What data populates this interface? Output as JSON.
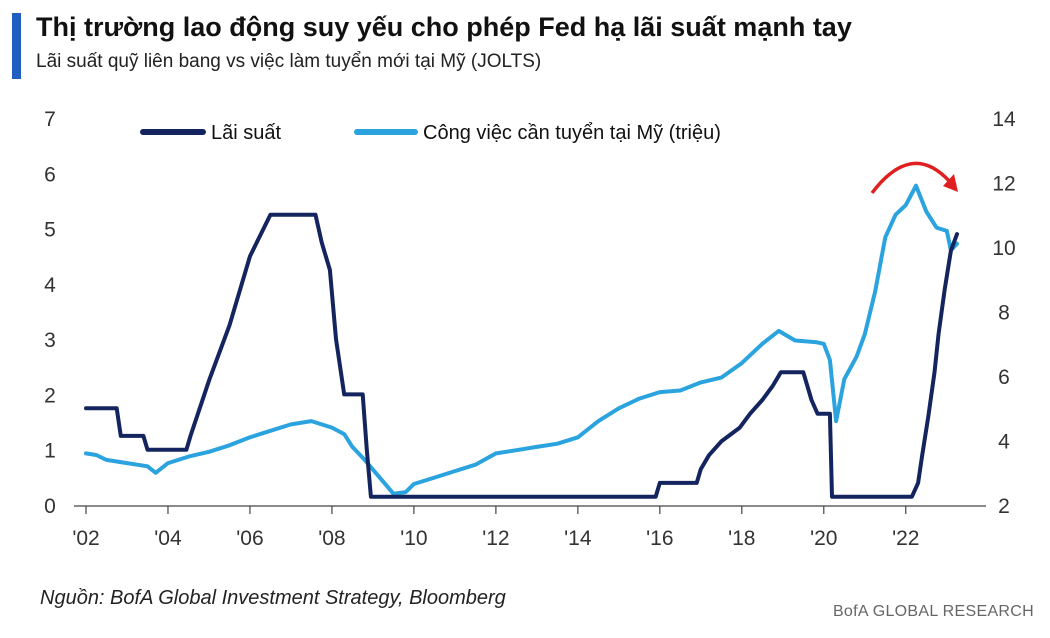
{
  "header": {
    "title": "Thị trường lao động suy yếu cho phép Fed hạ lãi suất mạnh tay",
    "subtitle": "Lãi suất quỹ liên bang vs việc làm tuyển mới tại Mỹ (JOLTS)",
    "accent_color": "#1f5fbf"
  },
  "footer": {
    "source": "Nguồn: BofA Global Investment Strategy, Bloomberg",
    "brand": "BofA GLOBAL RESEARCH"
  },
  "chart_data": {
    "type": "line",
    "x_ticks": [
      "'02",
      "'04",
      "'06",
      "'08",
      "'10",
      "'12",
      "'14",
      "'16",
      "'18",
      "'20",
      "'22"
    ],
    "x_range": [
      2002,
      2023.25
    ],
    "y_left": {
      "range": [
        0,
        7
      ],
      "ticks": [
        "0",
        "1",
        "2",
        "3",
        "4",
        "5",
        "6",
        "7"
      ]
    },
    "y_right": {
      "range": [
        2,
        14
      ],
      "ticks": [
        "2",
        "4",
        "6",
        "8",
        "10",
        "12",
        "14"
      ]
    },
    "legend": [
      "Lãi suất",
      "Công việc cần tuyển tại Mỹ (triệu)"
    ],
    "series": [
      {
        "name": "Lãi suất",
        "axis": "left",
        "color": "#14245e",
        "points": [
          [
            2002,
            1.75
          ],
          [
            2002.75,
            1.75
          ],
          [
            2002.85,
            1.25
          ],
          [
            2003.4,
            1.25
          ],
          [
            2003.5,
            1.0
          ],
          [
            2004.45,
            1.0
          ],
          [
            2004.55,
            1.25
          ],
          [
            2005.0,
            2.25
          ],
          [
            2005.5,
            3.25
          ],
          [
            2006.0,
            4.5
          ],
          [
            2006.5,
            5.25
          ],
          [
            2007.6,
            5.25
          ],
          [
            2007.75,
            4.75
          ],
          [
            2007.95,
            4.25
          ],
          [
            2008.1,
            3.0
          ],
          [
            2008.3,
            2.0
          ],
          [
            2008.75,
            2.0
          ],
          [
            2008.85,
            1.0
          ],
          [
            2008.95,
            0.15
          ],
          [
            2015.9,
            0.15
          ],
          [
            2016.0,
            0.4
          ],
          [
            2016.9,
            0.4
          ],
          [
            2017.0,
            0.65
          ],
          [
            2017.2,
            0.9
          ],
          [
            2017.5,
            1.15
          ],
          [
            2017.95,
            1.4
          ],
          [
            2018.2,
            1.65
          ],
          [
            2018.5,
            1.9
          ],
          [
            2018.75,
            2.15
          ],
          [
            2018.95,
            2.4
          ],
          [
            2019.5,
            2.4
          ],
          [
            2019.6,
            2.15
          ],
          [
            2019.7,
            1.9
          ],
          [
            2019.85,
            1.65
          ],
          [
            2020.15,
            1.65
          ],
          [
            2020.2,
            0.15
          ],
          [
            2022.15,
            0.15
          ],
          [
            2022.3,
            0.4
          ],
          [
            2022.4,
            0.9
          ],
          [
            2022.55,
            1.6
          ],
          [
            2022.7,
            2.4
          ],
          [
            2022.8,
            3.1
          ],
          [
            2022.95,
            3.9
          ],
          [
            2023.1,
            4.6
          ],
          [
            2023.25,
            4.9
          ]
        ]
      },
      {
        "name": "Công việc cần tuyển tại Mỹ (triệu)",
        "axis": "right",
        "color": "#2aa3df",
        "points": [
          [
            2002,
            3.6
          ],
          [
            2002.25,
            3.55
          ],
          [
            2002.5,
            3.4
          ],
          [
            2003.0,
            3.3
          ],
          [
            2003.5,
            3.2
          ],
          [
            2003.7,
            3.0
          ],
          [
            2004.0,
            3.3
          ],
          [
            2004.5,
            3.5
          ],
          [
            2005.0,
            3.65
          ],
          [
            2005.5,
            3.85
          ],
          [
            2006.0,
            4.1
          ],
          [
            2006.5,
            4.3
          ],
          [
            2007.0,
            4.5
          ],
          [
            2007.5,
            4.6
          ],
          [
            2008.0,
            4.4
          ],
          [
            2008.3,
            4.2
          ],
          [
            2008.5,
            3.8
          ],
          [
            2008.8,
            3.4
          ],
          [
            2009.2,
            2.8
          ],
          [
            2009.5,
            2.35
          ],
          [
            2009.8,
            2.4
          ],
          [
            2010.0,
            2.65
          ],
          [
            2010.5,
            2.85
          ],
          [
            2011.0,
            3.05
          ],
          [
            2011.5,
            3.25
          ],
          [
            2012.0,
            3.6
          ],
          [
            2012.5,
            3.7
          ],
          [
            2013.0,
            3.8
          ],
          [
            2013.5,
            3.9
          ],
          [
            2014.0,
            4.1
          ],
          [
            2014.5,
            4.6
          ],
          [
            2015.0,
            5.0
          ],
          [
            2015.5,
            5.3
          ],
          [
            2016.0,
            5.5
          ],
          [
            2016.5,
            5.55
          ],
          [
            2017.0,
            5.8
          ],
          [
            2017.5,
            5.95
          ],
          [
            2018.0,
            6.4
          ],
          [
            2018.5,
            7.0
          ],
          [
            2018.9,
            7.4
          ],
          [
            2019.3,
            7.1
          ],
          [
            2019.8,
            7.05
          ],
          [
            2020.0,
            7.0
          ],
          [
            2020.15,
            6.5
          ],
          [
            2020.3,
            4.6
          ],
          [
            2020.5,
            5.9
          ],
          [
            2020.8,
            6.6
          ],
          [
            2021.0,
            7.3
          ],
          [
            2021.25,
            8.6
          ],
          [
            2021.5,
            10.3
          ],
          [
            2021.75,
            11.0
          ],
          [
            2022.0,
            11.3
          ],
          [
            2022.25,
            11.9
          ],
          [
            2022.5,
            11.1
          ],
          [
            2022.75,
            10.6
          ],
          [
            2023.0,
            10.5
          ],
          [
            2023.1,
            9.9
          ],
          [
            2023.25,
            10.1
          ]
        ]
      }
    ],
    "annotation": "red-arrow-declining-trend"
  }
}
